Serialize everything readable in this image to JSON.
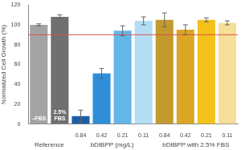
{
  "chart_data": {
    "type": "bar",
    "y_label": "Normalized Cell Growth (%)",
    "categories": [
      null,
      null,
      "0.84",
      "0.42",
      "0.21",
      "0.11",
      "0.84",
      "0.42",
      "0.21",
      "0.11"
    ],
    "groups": [
      "Reference",
      "Reference",
      "bDtBPP (mg/L)",
      "bDtBPP (mg/L)",
      "bDtBPP (mg/L)",
      "bDtBPP (mg/L)",
      "bDtBPP with 2.5% FBS",
      "bDtBPP with 2.5% FBS",
      "bDtBPP with 2.5% FBS",
      "bDtBPP with 2.5% FBS"
    ],
    "bar_labels": [
      "–FBS",
      "2.5% FBS",
      null,
      null,
      null,
      null,
      null,
      null,
      null,
      null
    ],
    "values": [
      100,
      108,
      8,
      51,
      94,
      104,
      105,
      95,
      105,
      102
    ],
    "errors": [
      1,
      2,
      6,
      5,
      5,
      4,
      7,
      5,
      2,
      2
    ],
    "colors": [
      "#a3a3a3",
      "#707070",
      "#1b5fa6",
      "#2e8fd8",
      "#62b6ea",
      "#b3ddf3",
      "#c39a2e",
      "#dba623",
      "#f4c21a",
      "#f6df98"
    ],
    "threshold": 90,
    "ylim": [
      0,
      120
    ],
    "yticks": [
      0,
      20,
      40,
      60,
      80,
      100,
      120
    ],
    "grid": false
  }
}
